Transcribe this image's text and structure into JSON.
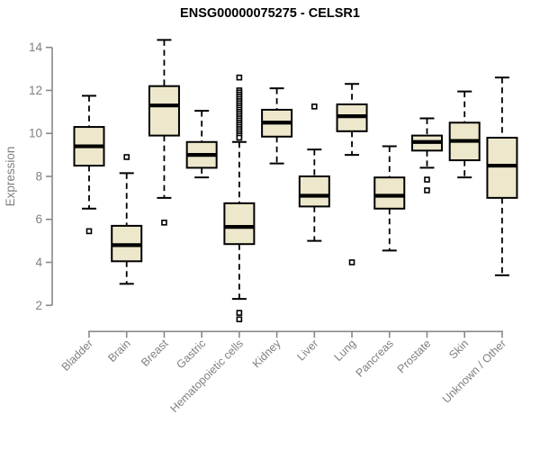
{
  "title": "ENSG00000075275 - CELSR1",
  "colors": {
    "box_fill": "#EDE8CC",
    "box_border": "#000000",
    "median": "#000000",
    "whisker": "#000000",
    "axis": "#888888",
    "tick_label": "#808080",
    "title_color": "#000000",
    "background": "#ffffff"
  },
  "chart_data": {
    "type": "boxplot",
    "title": "ENSG00000075275 - CELSR1",
    "xlabel": "",
    "ylabel": "Expression",
    "ylim": [
      1.2,
      14.5
    ],
    "yticks": [
      2,
      4,
      6,
      8,
      10,
      12,
      14
    ],
    "grid": false,
    "legend": "none",
    "categories": [
      "Bladder",
      "Brain",
      "Breast",
      "Gastric",
      "Hematopoietic cells",
      "Kidney",
      "Liver",
      "Lung",
      "Pancreas",
      "Prostate",
      "Skin",
      "Unknown / Other"
    ],
    "boxes": [
      {
        "category": "Bladder",
        "low": 6.5,
        "q1": 8.5,
        "median": 9.4,
        "q3": 10.3,
        "high": 11.75,
        "outliers": [
          5.45
        ]
      },
      {
        "category": "Brain",
        "low": 3.0,
        "q1": 4.05,
        "median": 4.8,
        "q3": 5.7,
        "high": 8.15,
        "outliers": [
          8.9
        ]
      },
      {
        "category": "Breast",
        "low": 7.0,
        "q1": 9.9,
        "median": 11.3,
        "q3": 12.2,
        "high": 14.35,
        "outliers": [
          5.85
        ]
      },
      {
        "category": "Gastric",
        "low": 7.95,
        "q1": 8.4,
        "median": 9.0,
        "q3": 9.6,
        "high": 11.05,
        "outliers": []
      },
      {
        "category": "Hematopoietic cells",
        "low": 2.3,
        "q1": 4.85,
        "median": 5.65,
        "q3": 6.75,
        "high": 9.6,
        "outliers": [
          12.6,
          12.0,
          11.9,
          11.8,
          11.7,
          11.6,
          11.5,
          11.4,
          11.3,
          11.2,
          11.1,
          11.0,
          10.9,
          10.8,
          10.7,
          10.6,
          10.5,
          10.4,
          10.3,
          10.2,
          10.1,
          10.0,
          9.9,
          9.8,
          1.65,
          1.35
        ]
      },
      {
        "category": "Kidney",
        "low": 8.6,
        "q1": 9.85,
        "median": 10.5,
        "q3": 11.1,
        "high": 12.1,
        "outliers": []
      },
      {
        "category": "Liver",
        "low": 5.0,
        "q1": 6.6,
        "median": 7.1,
        "q3": 8.0,
        "high": 9.25,
        "outliers": [
          11.25
        ]
      },
      {
        "category": "Lung",
        "low": 9.0,
        "q1": 10.1,
        "median": 10.8,
        "q3": 11.35,
        "high": 12.3,
        "outliers": [
          4.0
        ]
      },
      {
        "category": "Pancreas",
        "low": 4.55,
        "q1": 6.5,
        "median": 7.1,
        "q3": 7.95,
        "high": 9.4,
        "outliers": []
      },
      {
        "category": "Prostate",
        "low": 8.4,
        "q1": 9.2,
        "median": 9.6,
        "q3": 9.9,
        "high": 10.7,
        "outliers": [
          7.85,
          7.35
        ]
      },
      {
        "category": "Skin",
        "low": 7.95,
        "q1": 8.75,
        "median": 9.65,
        "q3": 10.5,
        "high": 11.95,
        "outliers": []
      },
      {
        "category": "Unknown / Other",
        "low": 3.4,
        "q1": 7.0,
        "median": 8.5,
        "q3": 9.8,
        "high": 12.6,
        "outliers": []
      }
    ]
  }
}
